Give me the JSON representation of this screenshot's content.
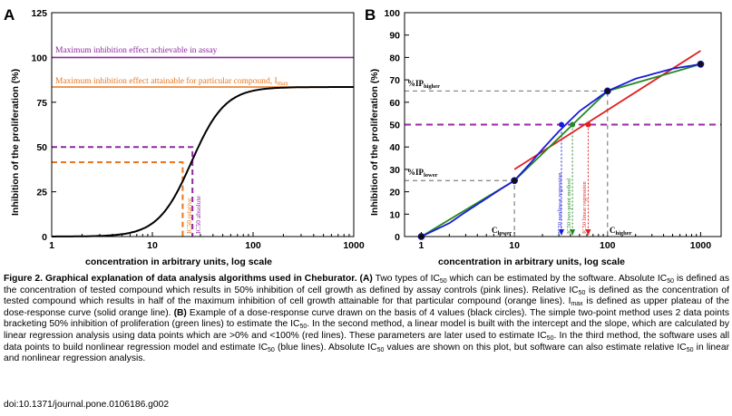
{
  "panel_a": {
    "letter": "A",
    "ylabel": "Inhibition of the proliferation (%)",
    "xlabel": "concentration in arbitrary units, log scale",
    "yticks": [
      "0",
      "25",
      "50",
      "75",
      "100",
      "125"
    ],
    "xticks": [
      "1",
      "10",
      "100",
      "1000"
    ],
    "max_line_label": "Maximum inhibition effect achievable in assay",
    "imax_line_label": "Maximum inhibition effect attainable for particular compound, I",
    "imax_sub": "max",
    "ic50_relative": "IC50 relative",
    "ic50_absolute": "IC50 absolute",
    "colors": {
      "purple": "#8e2a9e",
      "orange": "#e8761e",
      "curve": "#000000"
    }
  },
  "panel_b": {
    "letter": "B",
    "ylabel": "Inhibition of the proliferation (%)",
    "xlabel": "concentration in arbitrary units, log scale",
    "yticks": [
      "0",
      "10",
      "20",
      "30",
      "40",
      "50",
      "60",
      "70",
      "80",
      "90",
      "100"
    ],
    "xticks": [
      "1",
      "10",
      "100",
      "1000"
    ],
    "ip_higher": "%IP",
    "ip_higher_sub": "higher",
    "ip_lower": "%IP",
    "ip_lower_sub": "lower",
    "c_lower": "C",
    "c_lower_sub": "lower",
    "c_higher": "C",
    "c_higher_sub": "higher",
    "ic50_nonlinear": "IC50 nonlinear regression",
    "ic50_twopoint": "IC50 two-point method",
    "ic50_linear": "IC50 linear regression",
    "colors": {
      "blue": "#1a1adb",
      "green": "#238a23",
      "red": "#e02020",
      "purple": "#9b2aa6",
      "gray": "#808080"
    }
  },
  "chart_data": [
    {
      "type": "line",
      "title": "",
      "xlabel": "concentration in arbitrary units, log scale",
      "ylabel": "Inhibition of the proliferation (%)",
      "xscale": "log",
      "xlim": [
        1,
        1000
      ],
      "ylim": [
        0,
        125
      ],
      "series": [
        {
          "x": [
            1,
            3,
            5,
            8,
            10,
            15,
            20,
            25,
            30,
            40,
            60,
            100,
            200,
            500,
            1000
          ],
          "values": [
            0,
            0.5,
            3,
            12,
            18,
            31,
            41.5,
            50,
            56,
            66,
            75,
            80,
            82.5,
            83.3,
            83.5
          ]
        }
      ],
      "reference_lines": {
        "max_assay": 100,
        "imax": 83.5,
        "half_max": 41.5,
        "fifty_percent": 50
      },
      "ic50_relative_x": 20,
      "ic50_absolute_x": 25
    },
    {
      "type": "line",
      "title": "",
      "xlabel": "concentration in arbitrary units, log scale",
      "ylabel": "Inhibition of the proliferation (%)",
      "xscale": "log",
      "xlim": [
        1,
        1000
      ],
      "ylim": [
        0,
        100
      ],
      "points": {
        "x": [
          1,
          10,
          100,
          1000
        ],
        "values": [
          0,
          25,
          65,
          77
        ]
      },
      "series": [
        {
          "x": [
            1,
            2,
            3,
            5,
            7,
            10,
            15,
            20,
            30,
            50,
            100,
            200,
            500,
            1000
          ],
          "values": [
            0,
            6,
            11,
            17,
            21,
            25,
            33,
            39,
            47,
            56,
            65,
            70.5,
            75,
            77
          ]
        },
        {
          "x": [
            1,
            10,
            100,
            1000
          ],
          "values": [
            0,
            25,
            65,
            77
          ]
        },
        {
          "x": [
            10,
            1000
          ],
          "values": [
            30,
            83
          ]
        }
      ],
      "reference_lines": {
        "fifty_percent": 50,
        "ip_higher": 65,
        "ip_lower": 25
      },
      "ic50_nonlinear_x": 32,
      "ic50_twopoint_x": 42,
      "ic50_linear_x": 62
    }
  ],
  "caption": {
    "title": "Figure 2. Graphical explanation of data analysis algorithms used in Cheburator.",
    "body_1": "(A) Two types of IC50 which can be estimated by the software. Absolute IC50 is defined as the concentration of tested compound which results in 50% inhibition of cell growth as defined by assay controls (pink lines). Relative IC50 is defined as the concentration of tested compound which results in half of the maximum inhibition of cell growth attainable for that particular compound (orange lines). Imax is defined as upper plateau of the dose-response curve (solid orange line).",
    "body_2": "(B) Example of a dose-response curve drawn on the basis of 4 values (black circles). The simple two-point method uses 2 data points bracketing 50% inhibition of proliferation (green lines) to estimate the IC50. In the second method, a linear model is built with the intercept and the slope, which are calculated by linear regression analysis using data points which are >0% and <100% (red lines). These parameters are later used to estimate IC50. In the third method, the software uses all data points to build nonlinear regression model and estimate IC50 (blue lines). Absolute IC50 values are shown on this plot, but software can also estimate relative IC50 in linear and nonlinear regression analysis.",
    "doi": "doi:10.1371/journal.pone.0106186.g002"
  }
}
